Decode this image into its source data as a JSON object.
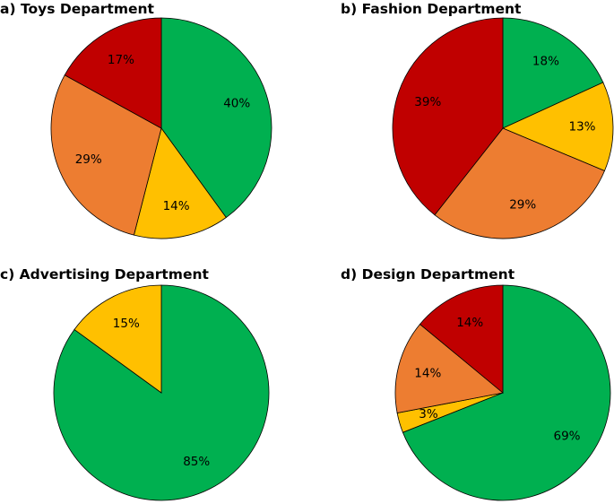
{
  "figure": {
    "title": ""
  },
  "chart_data": [
    {
      "type": "pie",
      "title": "a) Toys Department",
      "slices": [
        {
          "label": "40%",
          "value": 40,
          "color": "#00b050"
        },
        {
          "label": "14%",
          "value": 14,
          "color": "#ffc000"
        },
        {
          "label": "29%",
          "value": 29,
          "color": "#ed7d31"
        },
        {
          "label": "17%",
          "value": 17,
          "color": "#c00000"
        }
      ]
    },
    {
      "type": "pie",
      "title": "b) Fashion Department",
      "slices": [
        {
          "label": "18%",
          "value": 18,
          "color": "#00b050"
        },
        {
          "label": "13%",
          "value": 13,
          "color": "#ffc000"
        },
        {
          "label": "29%",
          "value": 29,
          "color": "#ed7d31"
        },
        {
          "label": "39%",
          "value": 39,
          "color": "#c00000"
        }
      ]
    },
    {
      "type": "pie",
      "title": "c) Advertising Department",
      "slices": [
        {
          "label": "85%",
          "value": 85,
          "color": "#00b050"
        },
        {
          "label": "15%",
          "value": 15,
          "color": "#ffc000"
        }
      ]
    },
    {
      "type": "pie",
      "title": "d) Design Department",
      "slices": [
        {
          "label": "69%",
          "value": 69,
          "color": "#00b050"
        },
        {
          "label": "3%",
          "value": 3,
          "color": "#ffc000"
        },
        {
          "label": "14%",
          "value": 14,
          "color": "#ed7d31"
        },
        {
          "label": "14%",
          "value": 14,
          "color": "#c00000"
        }
      ]
    }
  ]
}
